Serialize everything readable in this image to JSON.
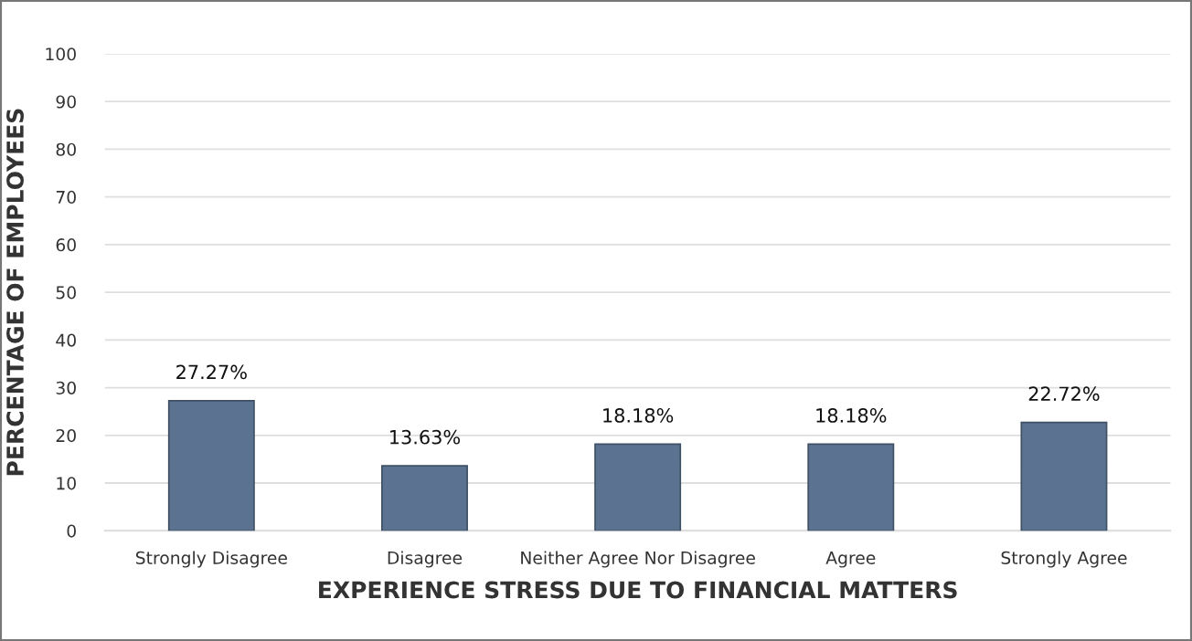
{
  "chart_data": {
    "type": "bar",
    "xlabel": "EXPERIENCE STRESS DUE TO FINANCIAL MATTERS",
    "ylabel": "PERCENTAGE OF EMPLOYEES",
    "categories": [
      "Strongly Disagree",
      "Disagree",
      "Neither Agree Nor Disagree",
      "Agree",
      "Strongly Agree"
    ],
    "values": [
      27.27,
      13.63,
      18.18,
      18.18,
      22.72
    ],
    "value_labels": [
      "27.27%",
      "13.63%",
      "18.18%",
      "18.18%",
      "22.72%"
    ],
    "color": "#5b7390",
    "ylim": [
      0,
      100
    ],
    "yticks": [
      0,
      10,
      20,
      30,
      40,
      50,
      60,
      70,
      80,
      90,
      100
    ],
    "grid": "y"
  }
}
